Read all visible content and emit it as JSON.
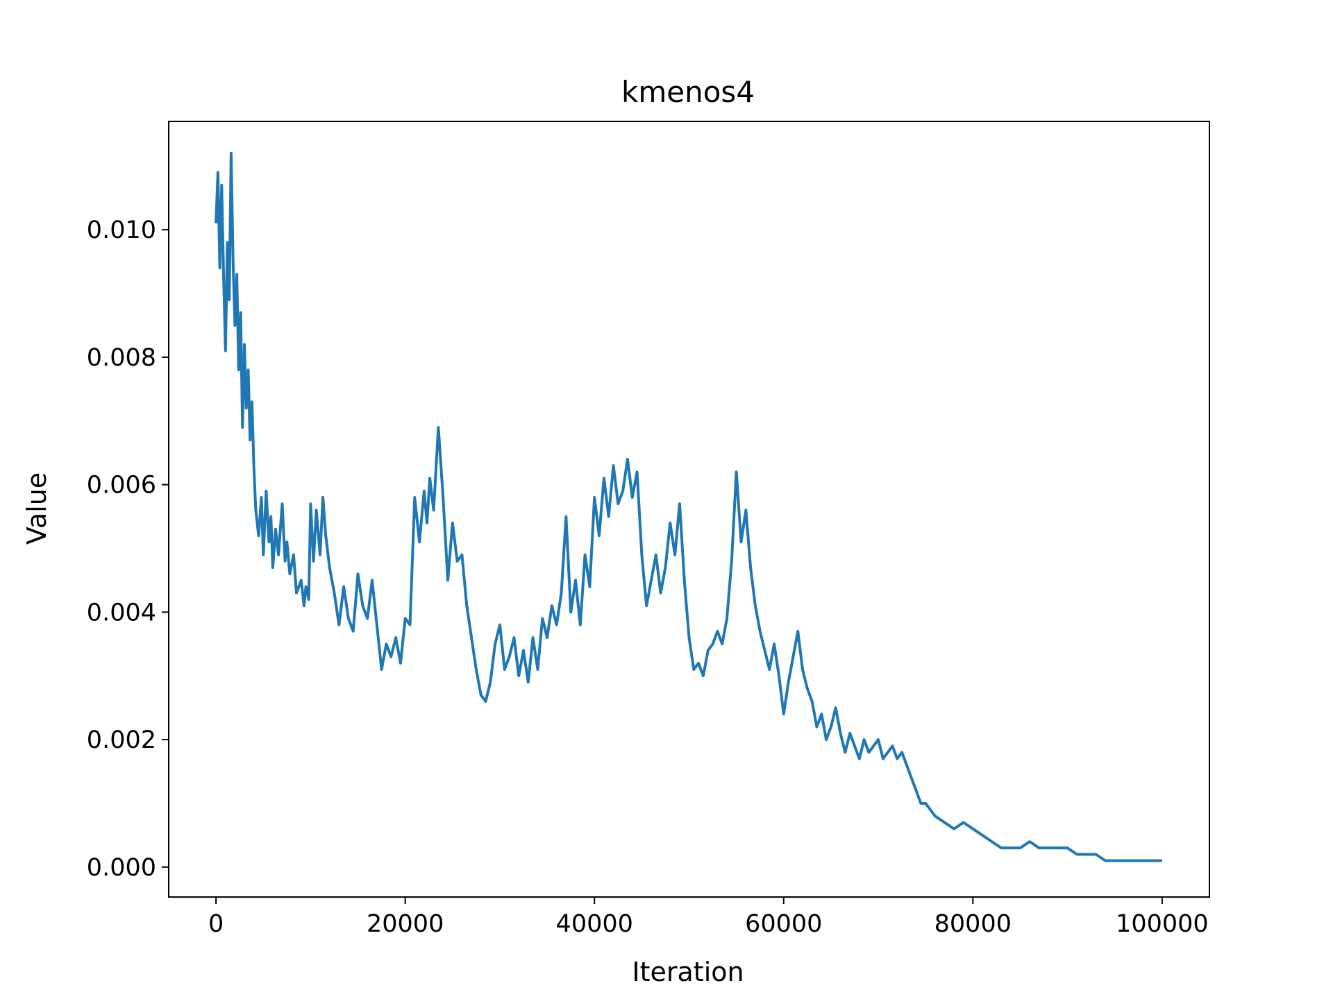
{
  "chart_data": {
    "type": "line",
    "title": "kmenos4",
    "xlabel": "Iteration",
    "ylabel": "Value",
    "xlim": [
      -5000,
      105000
    ],
    "ylim": [
      -0.00047,
      0.0117
    ],
    "xticks": [
      0,
      20000,
      40000,
      60000,
      80000,
      100000
    ],
    "xtick_labels": [
      "0",
      "20000",
      "40000",
      "60000",
      "80000",
      "100000"
    ],
    "yticks": [
      0.0,
      0.002,
      0.004,
      0.006,
      0.008,
      0.01
    ],
    "ytick_labels": [
      "0.000",
      "0.002",
      "0.004",
      "0.006",
      "0.008",
      "0.010"
    ],
    "grid": false,
    "line_color": "#1f77b4",
    "series": [
      {
        "x": [
          0,
          200,
          400,
          600,
          800,
          1000,
          1200,
          1400,
          1600,
          1800,
          2000,
          2200,
          2400,
          2600,
          2800,
          3000,
          3200,
          3400,
          3600,
          3800,
          4000,
          4200,
          4500,
          4800,
          5000,
          5300,
          5600,
          5800,
          6000,
          6300,
          6600,
          7000,
          7300,
          7500,
          7800,
          8200,
          8500,
          9000,
          9300,
          9500,
          9800,
          10000,
          10300,
          10600,
          11000,
          11300,
          11600,
          12000,
          12500,
          13000,
          13500,
          14000,
          14500,
          15000,
          15500,
          16000,
          16500,
          17000,
          17500,
          18000,
          18500,
          19000,
          19500,
          20000,
          20500,
          21000,
          21500,
          22000,
          22300,
          22600,
          23000,
          23500,
          24000,
          24500,
          25000,
          25500,
          26000,
          26500,
          27000,
          27500,
          28000,
          28500,
          29000,
          29500,
          30000,
          30500,
          31000,
          31500,
          32000,
          32500,
          33000,
          33500,
          34000,
          34500,
          35000,
          35500,
          36000,
          36500,
          37000,
          37500,
          38000,
          38500,
          39000,
          39500,
          40000,
          40500,
          41000,
          41500,
          42000,
          42500,
          43000,
          43500,
          44000,
          44500,
          45000,
          45500,
          46000,
          46500,
          47000,
          47500,
          48000,
          48500,
          49000,
          49500,
          50000,
          50500,
          51000,
          51500,
          52000,
          52500,
          53000,
          53500,
          54000,
          54500,
          55000,
          55500,
          56000,
          56500,
          57000,
          57500,
          58000,
          58500,
          59000,
          59500,
          60000,
          60500,
          61000,
          61500,
          62000,
          62500,
          63000,
          63500,
          64000,
          64500,
          65000,
          65500,
          66000,
          66500,
          67000,
          67500,
          68000,
          68500,
          69000,
          69500,
          70000,
          70500,
          71000,
          71500,
          72000,
          72500,
          73000,
          73500,
          74000,
          74500,
          75000,
          75500,
          76000,
          77000,
          78000,
          79000,
          80000,
          81000,
          82000,
          83000,
          84000,
          85000,
          86000,
          87000,
          88000,
          89000,
          90000,
          91000,
          92000,
          93000,
          94000,
          95000,
          96000,
          97000,
          98000,
          99000,
          100000
        ],
        "y": [
          0.0101,
          0.0109,
          0.0094,
          0.0107,
          0.0093,
          0.0081,
          0.0098,
          0.0089,
          0.0112,
          0.0095,
          0.0085,
          0.0093,
          0.0078,
          0.0087,
          0.0069,
          0.0082,
          0.0072,
          0.0078,
          0.0067,
          0.0073,
          0.0063,
          0.0056,
          0.0052,
          0.0058,
          0.0049,
          0.0059,
          0.0051,
          0.0055,
          0.0047,
          0.0053,
          0.0049,
          0.0057,
          0.0048,
          0.0051,
          0.0046,
          0.0049,
          0.0043,
          0.0045,
          0.0041,
          0.0044,
          0.0042,
          0.0057,
          0.0048,
          0.0056,
          0.0049,
          0.0058,
          0.0052,
          0.0047,
          0.0043,
          0.0038,
          0.0044,
          0.0039,
          0.0037,
          0.0046,
          0.0041,
          0.0039,
          0.0045,
          0.0038,
          0.0031,
          0.0035,
          0.0033,
          0.0036,
          0.0032,
          0.0039,
          0.0038,
          0.0058,
          0.0051,
          0.0059,
          0.0054,
          0.0061,
          0.0056,
          0.0069,
          0.0058,
          0.0045,
          0.0054,
          0.0048,
          0.0049,
          0.0041,
          0.0036,
          0.0031,
          0.0027,
          0.0026,
          0.0029,
          0.0035,
          0.0038,
          0.0031,
          0.0033,
          0.0036,
          0.003,
          0.0034,
          0.0029,
          0.0036,
          0.0031,
          0.0039,
          0.0036,
          0.0041,
          0.0038,
          0.0043,
          0.0055,
          0.004,
          0.0045,
          0.0038,
          0.0049,
          0.0044,
          0.0058,
          0.0052,
          0.0061,
          0.0055,
          0.0063,
          0.0057,
          0.0059,
          0.0064,
          0.0058,
          0.0062,
          0.0049,
          0.0041,
          0.0045,
          0.0049,
          0.0043,
          0.0047,
          0.0054,
          0.0049,
          0.0057,
          0.0045,
          0.0036,
          0.0031,
          0.0032,
          0.003,
          0.0034,
          0.0035,
          0.0037,
          0.0035,
          0.0039,
          0.0048,
          0.0062,
          0.0051,
          0.0056,
          0.0047,
          0.0041,
          0.0037,
          0.0034,
          0.0031,
          0.0035,
          0.003,
          0.0024,
          0.0029,
          0.0033,
          0.0037,
          0.0031,
          0.0028,
          0.0026,
          0.0022,
          0.0024,
          0.002,
          0.0022,
          0.0025,
          0.0021,
          0.0018,
          0.0021,
          0.0019,
          0.0017,
          0.002,
          0.0018,
          0.0019,
          0.002,
          0.0017,
          0.0018,
          0.0019,
          0.0017,
          0.0018,
          0.0016,
          0.0014,
          0.0012,
          0.001,
          0.001,
          0.0009,
          0.0008,
          0.0007,
          0.0006,
          0.0007,
          0.0006,
          0.0005,
          0.0004,
          0.0003,
          0.0003,
          0.0003,
          0.0004,
          0.0003,
          0.0003,
          0.0003,
          0.0003,
          0.0002,
          0.0002,
          0.0002,
          0.0001,
          0.0001,
          0.0001,
          0.0001,
          0.0001,
          0.0001,
          0.0001
        ]
      }
    ]
  }
}
